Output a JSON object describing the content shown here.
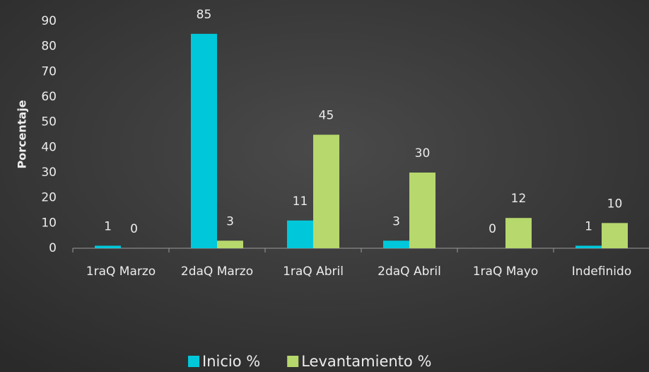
{
  "chart_data": {
    "type": "bar",
    "y_axis_label": "Porcentaje",
    "categories": [
      "1raQ Marzo",
      "2daQ Marzo",
      "1raQ Abril",
      "2daQ Abril",
      "1raQ Mayo",
      "Indefinido"
    ],
    "series": [
      {
        "name": "Inicio %",
        "color": "#00c8da",
        "values": [
          1,
          85,
          11,
          3,
          0,
          1
        ]
      },
      {
        "name": "Levantamiento %",
        "color": "#b6d86c",
        "values": [
          0,
          3,
          45,
          30,
          12,
          10
        ]
      }
    ],
    "ylim": [
      0,
      90
    ],
    "yticks": [
      0,
      10,
      20,
      30,
      40,
      50,
      60,
      70,
      80,
      90
    ],
    "grid": false,
    "legend": "bottom"
  }
}
